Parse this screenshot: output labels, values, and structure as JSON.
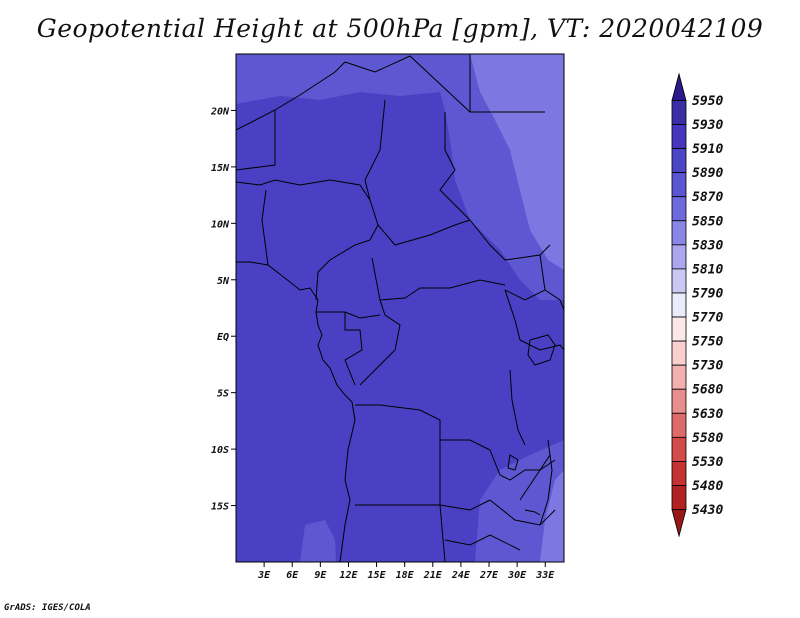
{
  "title": "Geopotential Height at 500hPa [gpm], VT: 2020042109",
  "footer": "GrADS: IGES/COLA",
  "map": {
    "lon_range": [
      0,
      35
    ],
    "lat_range": [
      -20,
      25
    ],
    "x_ticks": [
      "3E",
      "6E",
      "9E",
      "12E",
      "15E",
      "18E",
      "21E",
      "24E",
      "27E",
      "30E",
      "33E"
    ],
    "y_ticks": [
      "20N",
      "15N",
      "10N",
      "5N",
      "EQ",
      "5S",
      "10S",
      "15S"
    ]
  },
  "colorbar": {
    "labels": [
      "5950",
      "5930",
      "5910",
      "5890",
      "5870",
      "5850",
      "5830",
      "5810",
      "5790",
      "5770",
      "5750",
      "5730",
      "5680",
      "5630",
      "5580",
      "5530",
      "5480",
      "5430"
    ],
    "colors": [
      "#2a1a8c",
      "#3a2ea6",
      "#4536bf",
      "#4d45c8",
      "#5b55d3",
      "#6e69dd",
      "#8a86e6",
      "#aaa7ee",
      "#cbc9f4",
      "#ecebfb",
      "#fde8e8",
      "#f9cfcf",
      "#f2b0b0",
      "#e98e8e",
      "#de6a6a",
      "#d24a4a",
      "#c53232",
      "#b22222",
      "#981818"
    ]
  },
  "fields": {
    "dominant": "#4a40c4",
    "lighter": "#5e57d2",
    "lightest": "#7d77e2"
  }
}
